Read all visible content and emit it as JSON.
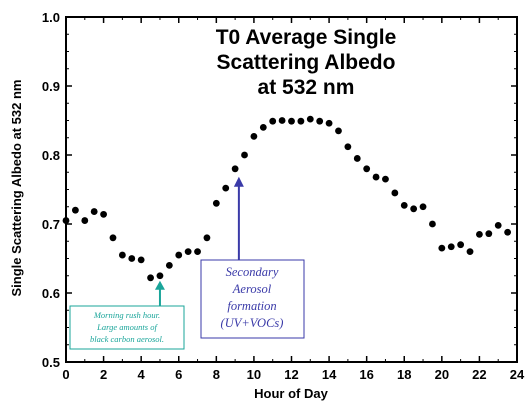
{
  "chart_data": {
    "type": "scatter",
    "title_lines": [
      "T0 Average Single",
      "Scattering Albedo",
      "at 532 nm"
    ],
    "xlabel": "Hour of Day",
    "ylabel": "Single Scattering Albedo at 532 nm",
    "xlim": [
      0,
      24
    ],
    "ylim": [
      0.5,
      1.0
    ],
    "x_ticks": [
      0,
      2,
      4,
      6,
      8,
      10,
      12,
      14,
      16,
      18,
      20,
      22,
      24
    ],
    "y_ticks": [
      0.5,
      0.6,
      0.7,
      0.8,
      0.9,
      1.0
    ],
    "y_tick_labels": [
      "0.5",
      "0.6",
      "0.7",
      "0.8",
      "0.9",
      "1.0"
    ],
    "grid": false,
    "marker_color": "#000000",
    "x": [
      0.0,
      0.5,
      1.0,
      1.5,
      2.0,
      2.5,
      3.0,
      3.5,
      4.0,
      4.5,
      5.0,
      5.5,
      6.0,
      6.5,
      7.0,
      7.5,
      8.0,
      8.5,
      9.0,
      9.5,
      10.0,
      10.5,
      11.0,
      11.5,
      12.0,
      12.5,
      13.0,
      13.5,
      14.0,
      14.5,
      15.0,
      15.5,
      16.0,
      16.5,
      17.0,
      17.5,
      18.0,
      18.5,
      19.0,
      19.5,
      20.0,
      20.5,
      21.0,
      21.5,
      22.0,
      22.5,
      23.0,
      23.5
    ],
    "y": [
      0.705,
      0.72,
      0.705,
      0.718,
      0.714,
      0.68,
      0.655,
      0.65,
      0.648,
      0.622,
      0.625,
      0.64,
      0.655,
      0.66,
      0.66,
      0.68,
      0.73,
      0.752,
      0.78,
      0.8,
      0.827,
      0.84,
      0.849,
      0.85,
      0.849,
      0.849,
      0.852,
      0.849,
      0.846,
      0.835,
      0.812,
      0.795,
      0.78,
      0.768,
      0.765,
      0.745,
      0.727,
      0.722,
      0.725,
      0.7,
      0.665,
      0.667,
      0.67,
      0.66,
      0.685,
      0.686,
      0.698,
      0.688
    ],
    "annotations": [
      {
        "name": "morning-rush",
        "lines": [
          "Morning rush hour.",
          "Large amounts of",
          "black carbon aerosol."
        ],
        "arrow_to": [
          5.0,
          0.625
        ],
        "color": "#1aa59a"
      },
      {
        "name": "secondary-aerosol",
        "lines": [
          "Secondary",
          "Aerosol",
          "formation",
          "(UV+VOCs)"
        ],
        "arrow_to": [
          9.2,
          0.78
        ],
        "color": "#3a3aa8"
      }
    ]
  }
}
